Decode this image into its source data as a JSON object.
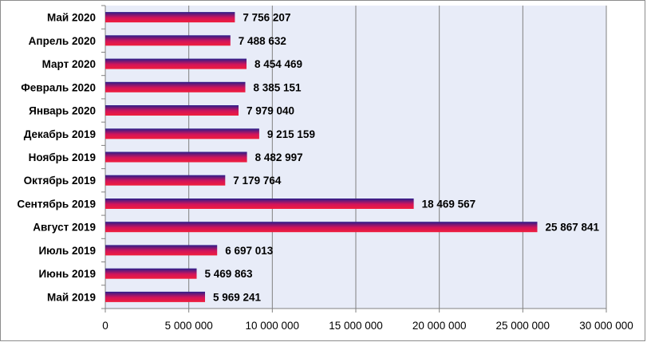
{
  "chart_data": {
    "type": "bar",
    "orientation": "horizontal",
    "title": "",
    "xlabel": "",
    "ylabel": "",
    "categories": [
      "Май 2020",
      "Апрель 2020",
      "Март 2020",
      "Февраль 2020",
      "Январь 2020",
      "Декабрь 2019",
      "Ноябрь 2019",
      "Октябрь 2019",
      "Сентябрь 2019",
      "Август 2019",
      "Июль 2019",
      "Июнь 2019",
      "Май 2019"
    ],
    "values": [
      7756207,
      7488632,
      8454469,
      8385151,
      7979040,
      9215159,
      8482997,
      7179764,
      18469567,
      25867841,
      6697013,
      5469863,
      5969241
    ],
    "value_labels": [
      "7 756 207",
      "7 488 632",
      "8 454 469",
      "8 385 151",
      "7 979 040",
      "9 215 159",
      "8 482 997",
      "7 179 764",
      "18 469 567",
      "25 867 841",
      "6 697 013",
      "5 469 863",
      "5 969 241"
    ],
    "xlim": [
      0,
      30000000
    ],
    "xticks": [
      0,
      5000000,
      10000000,
      15000000,
      20000000,
      25000000,
      30000000
    ],
    "xtick_labels": [
      "0",
      "5 000 000",
      "10 000 000",
      "15 000 000",
      "20 000 000",
      "25 000 000",
      "30 000 000"
    ],
    "grid": "vertical",
    "legend": "none",
    "colors": {
      "plot_background": "#e8ecf8",
      "gridline": "#808080",
      "bar_top": "#2a1e8c",
      "bar_middle": "#d2145a",
      "bar_bottom": "#f01e3c"
    }
  }
}
